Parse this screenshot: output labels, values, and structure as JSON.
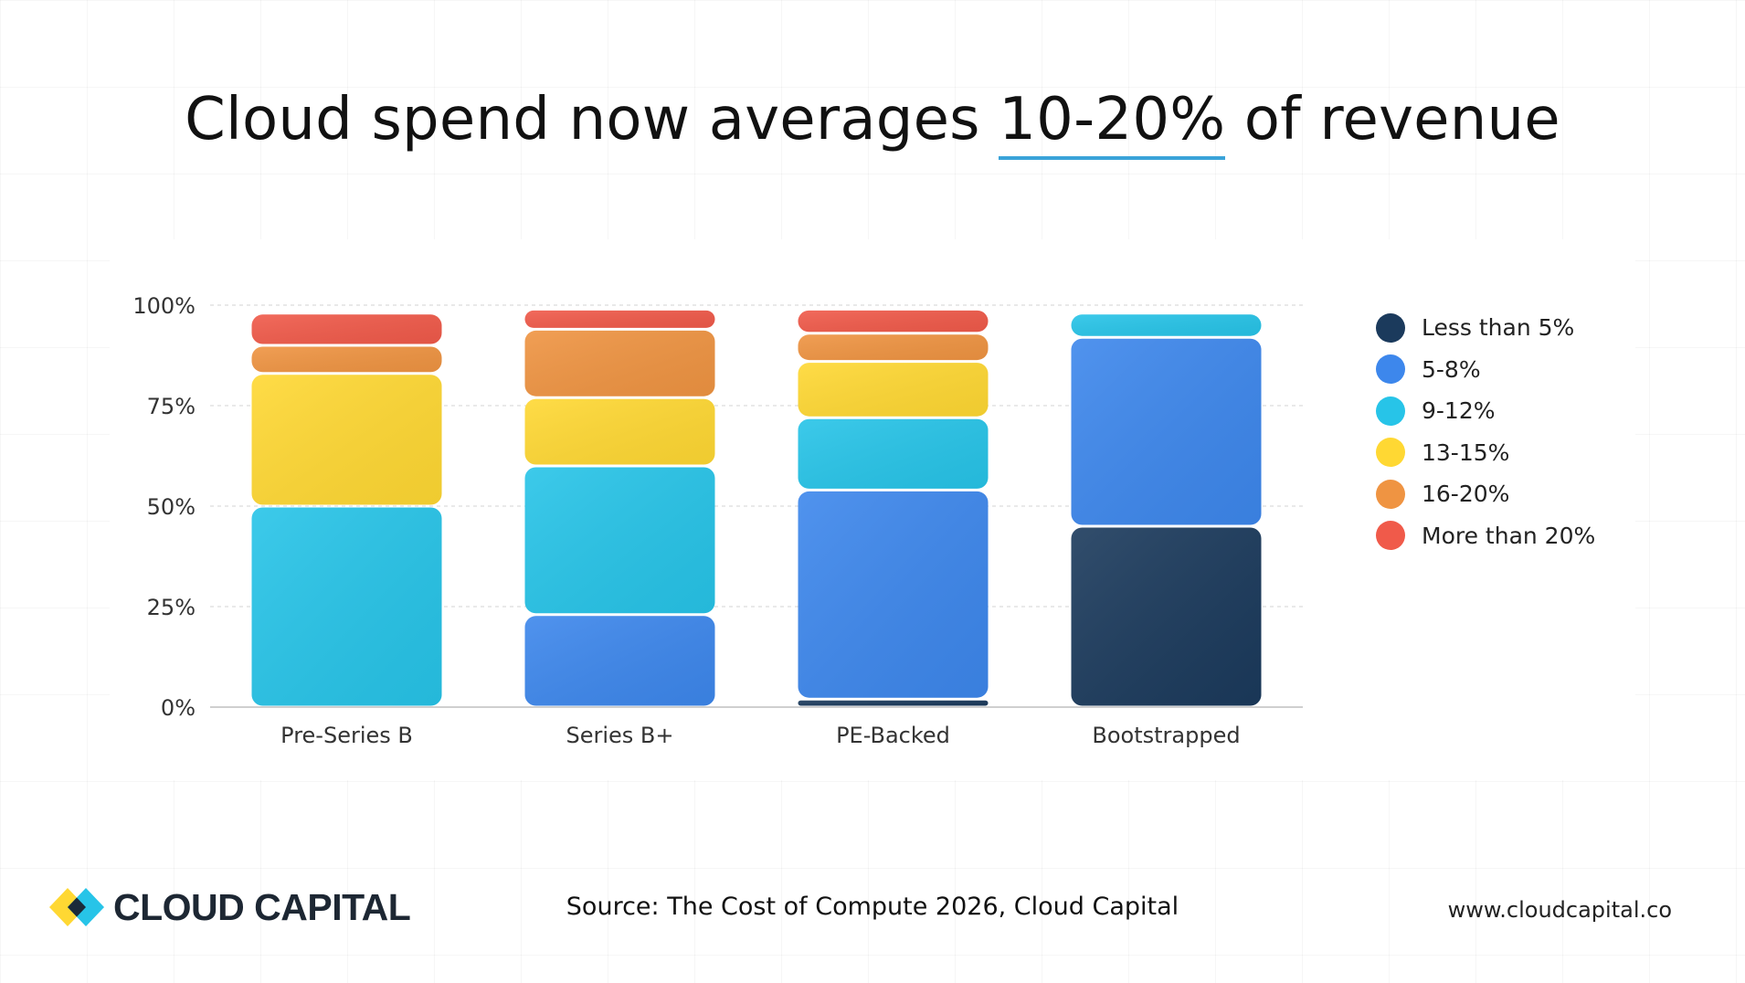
{
  "title": {
    "before": "Cloud spend now averages ",
    "highlight": "10-20%",
    "after": " of revenue"
  },
  "colors": {
    "highlight_underline": "#3aa3d9",
    "grid": "#dcdcdc"
  },
  "chart_data": {
    "type": "bar",
    "stacked": true,
    "categories": [
      "Pre-Series B",
      "Series B+",
      "PE-Backed",
      "Bootstrapped"
    ],
    "yticks": [
      "0%",
      "25%",
      "50%",
      "75%",
      "100%"
    ],
    "ylim": [
      0,
      100
    ],
    "grid": true,
    "legend_position": "right",
    "series": [
      {
        "name": "Less than 5%",
        "color": "#1b3a5c",
        "values": [
          0,
          0,
          2,
          45
        ]
      },
      {
        "name": "5-8%",
        "color": "#3d87ec",
        "values": [
          0,
          23,
          52,
          47
        ]
      },
      {
        "name": "9-12%",
        "color": "#27c4e8",
        "values": [
          50,
          37,
          18,
          6
        ]
      },
      {
        "name": "13-15%",
        "color": "#ffd833",
        "values": [
          33,
          17,
          14,
          0
        ]
      },
      {
        "name": "16-20%",
        "color": "#ef9442",
        "values": [
          7,
          17,
          7,
          0
        ]
      },
      {
        "name": "More than 20%",
        "color": "#f05a4a",
        "values": [
          8,
          5,
          6,
          0
        ]
      }
    ]
  },
  "footer": {
    "logo_text": "CLOUD CAPITAL",
    "source": "Source: The Cost of Compute 2026, Cloud Capital",
    "website": "www.cloudcapital.co"
  }
}
